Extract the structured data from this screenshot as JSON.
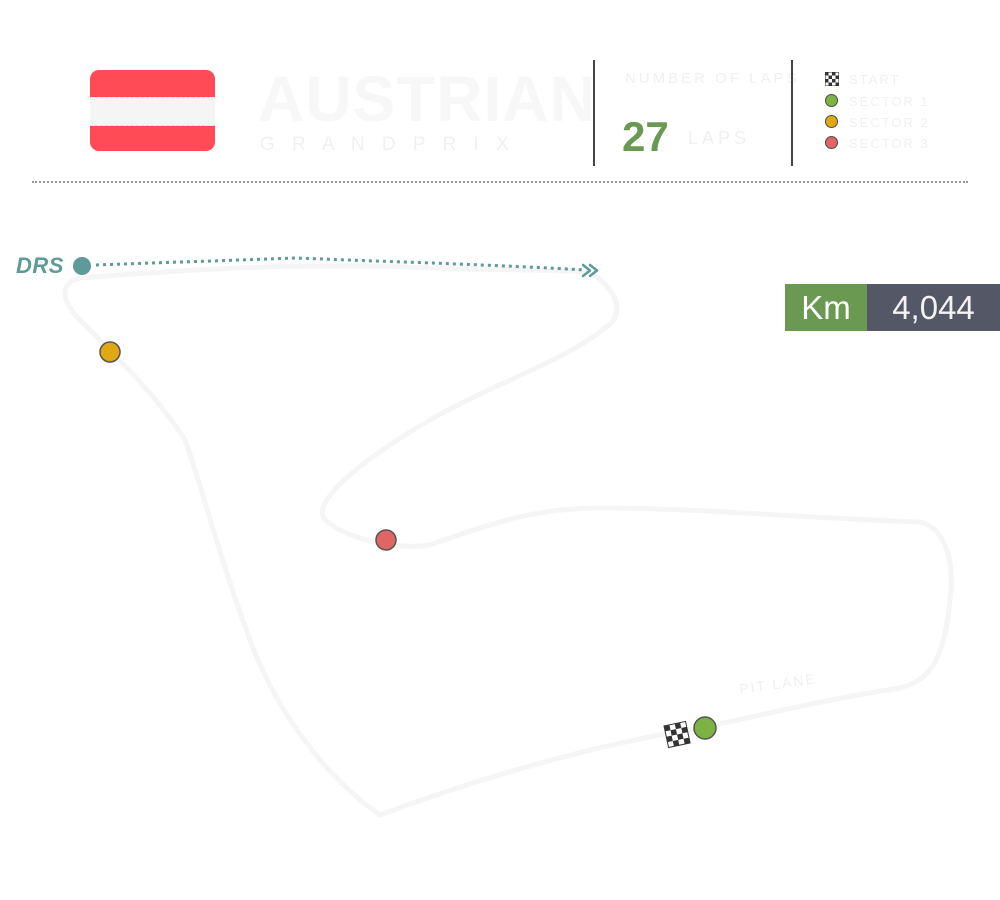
{
  "header": {
    "title": "AUSTRIAN",
    "subtitle": "G R A N D   P R I X",
    "laps_label": "NUMBER OF LAPS",
    "laps_value": "27",
    "laps_unit": "LAPS"
  },
  "flag": {
    "stripes": [
      "#ff4b55",
      "#f5f5f5",
      "#ff4b55"
    ]
  },
  "legend": [
    {
      "icon": "checkered-flag-icon",
      "label": "START"
    },
    {
      "icon": "green-dot-icon",
      "label": "SECTOR 1",
      "color": "#7cb342"
    },
    {
      "icon": "yellow-dot-icon",
      "label": "SECTOR 2",
      "color": "#e0a912"
    },
    {
      "icon": "red-dot-icon",
      "label": "SECTOR 3",
      "color": "#e06666"
    }
  ],
  "drs": {
    "label": "DRS",
    "color": "#5e9a98"
  },
  "track": {
    "length_unit": "Km",
    "length_value": "4,044",
    "pit_label": "PIT LANE"
  },
  "colors": {
    "accent_green": "#6a9a52",
    "badge_dark": "#545766",
    "sector1": "#7cb342",
    "sector2": "#e0a912",
    "sector3": "#e06666"
  }
}
